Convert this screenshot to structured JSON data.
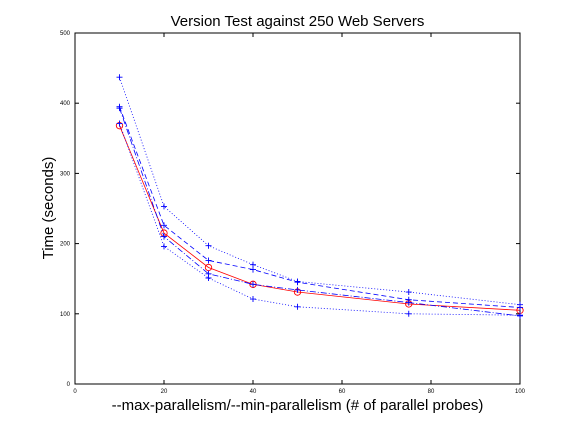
{
  "chart_data": {
    "type": "line",
    "title": "Version Test against 250 Web Servers",
    "xlabel": "--max-parallelism/--min-parallelism (# of parallel probes)",
    "ylabel": "Time (seconds)",
    "xlim": [
      0,
      100
    ],
    "ylim": [
      0,
      500
    ],
    "x_ticks": [
      0,
      20,
      40,
      60,
      80,
      100
    ],
    "y_ticks": [
      0,
      100,
      200,
      300,
      400,
      500
    ],
    "grid": false,
    "legend": "none",
    "x": [
      10,
      20,
      30,
      40,
      50,
      75,
      100
    ],
    "series": [
      {
        "values": [
          368,
          215,
          166,
          142,
          131,
          114,
          105
        ],
        "color": "#ff0000",
        "style": "solid",
        "marker": "circle"
      },
      {
        "values": [
          437,
          253,
          197,
          170,
          146,
          131,
          113
        ],
        "color": "#0000ff",
        "style": "dotted",
        "marker": "plus"
      },
      {
        "values": [
          395,
          226,
          176,
          163,
          145,
          120,
          109
        ],
        "color": "#0000ff",
        "style": "dashed",
        "marker": "plus"
      },
      {
        "values": [
          393,
          210,
          157,
          142,
          134,
          116,
          97
        ],
        "color": "#0000ff",
        "style": "dashdot",
        "marker": "plus"
      },
      {
        "values": [
          371,
          196,
          151,
          121,
          110,
          100,
          98
        ],
        "color": "#0000ff",
        "style": "dotted",
        "marker": "plus"
      }
    ]
  }
}
